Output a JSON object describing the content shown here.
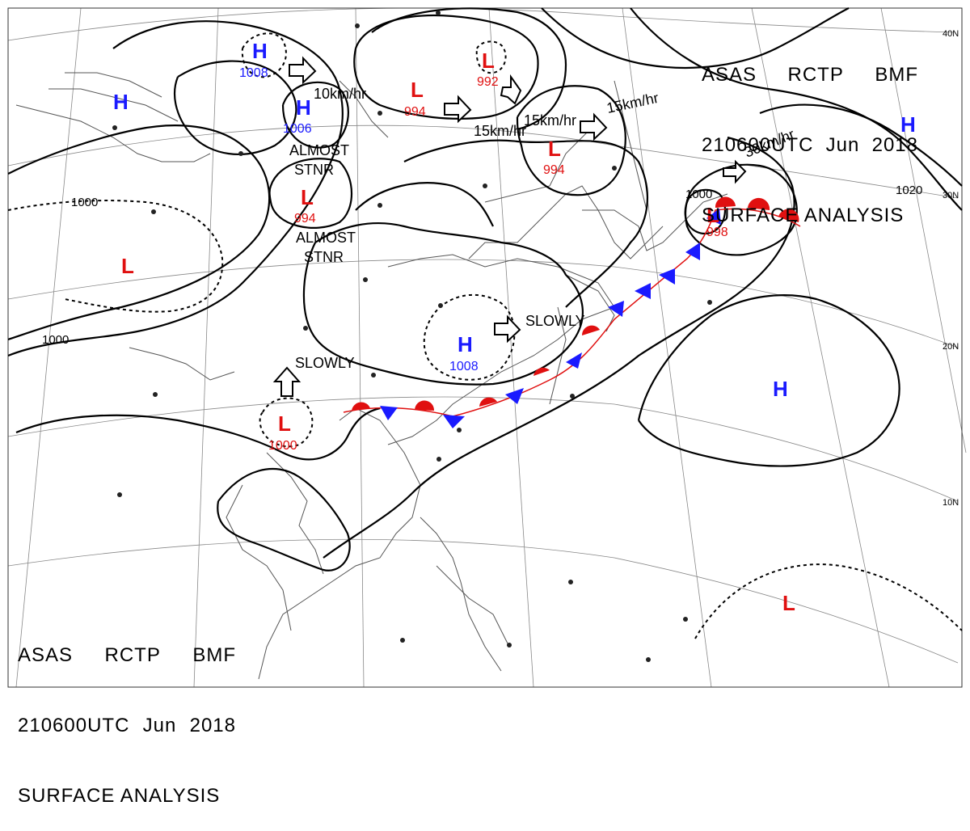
{
  "header": {
    "line1": [
      "ASAS",
      "RCTP",
      "BMF"
    ],
    "line2": [
      "210600UTC",
      "Jun",
      "2018"
    ],
    "line3": "SURFACE ANALYSIS"
  },
  "latitudes": [
    "40N",
    "30N",
    "20N",
    "10N"
  ],
  "isobar_labels": [
    "1000",
    "1000",
    "1020",
    "1000"
  ],
  "pressure_centers": [
    {
      "type": "H",
      "value": "1008",
      "color": "#1a1aff"
    },
    {
      "type": "H",
      "value": "1006",
      "color": "#1a1aff"
    },
    {
      "type": "H",
      "value": "",
      "color": "#1a1aff"
    },
    {
      "type": "H",
      "value": "1008",
      "color": "#1a1aff"
    },
    {
      "type": "H",
      "value": "",
      "color": "#1a1aff"
    },
    {
      "type": "H",
      "value": "",
      "color": "#1a1aff"
    },
    {
      "type": "L",
      "value": "994",
      "color": "#e01010"
    },
    {
      "type": "L",
      "value": "992",
      "color": "#e01010"
    },
    {
      "type": "L",
      "value": "994",
      "color": "#e01010"
    },
    {
      "type": "L",
      "value": "994",
      "color": "#e01010"
    },
    {
      "type": "L",
      "value": "998",
      "color": "#e01010"
    },
    {
      "type": "L",
      "value": "1000",
      "color": "#e01010"
    },
    {
      "type": "L",
      "value": "",
      "color": "#e01010"
    },
    {
      "type": "L",
      "value": "",
      "color": "#e01010"
    }
  ],
  "motion_labels": [
    "10km/hr",
    "15km/hr",
    "15km/hr",
    "15km/hr",
    "30km/hr",
    "SLOWLY",
    "SLOWLY"
  ],
  "annotations": [
    "ALMOST",
    "STNR",
    "ALMOST",
    "STNR"
  ],
  "colors": {
    "high": "#1a1aff",
    "low": "#e01010",
    "isobar": "#000000",
    "coast": "#555555"
  }
}
